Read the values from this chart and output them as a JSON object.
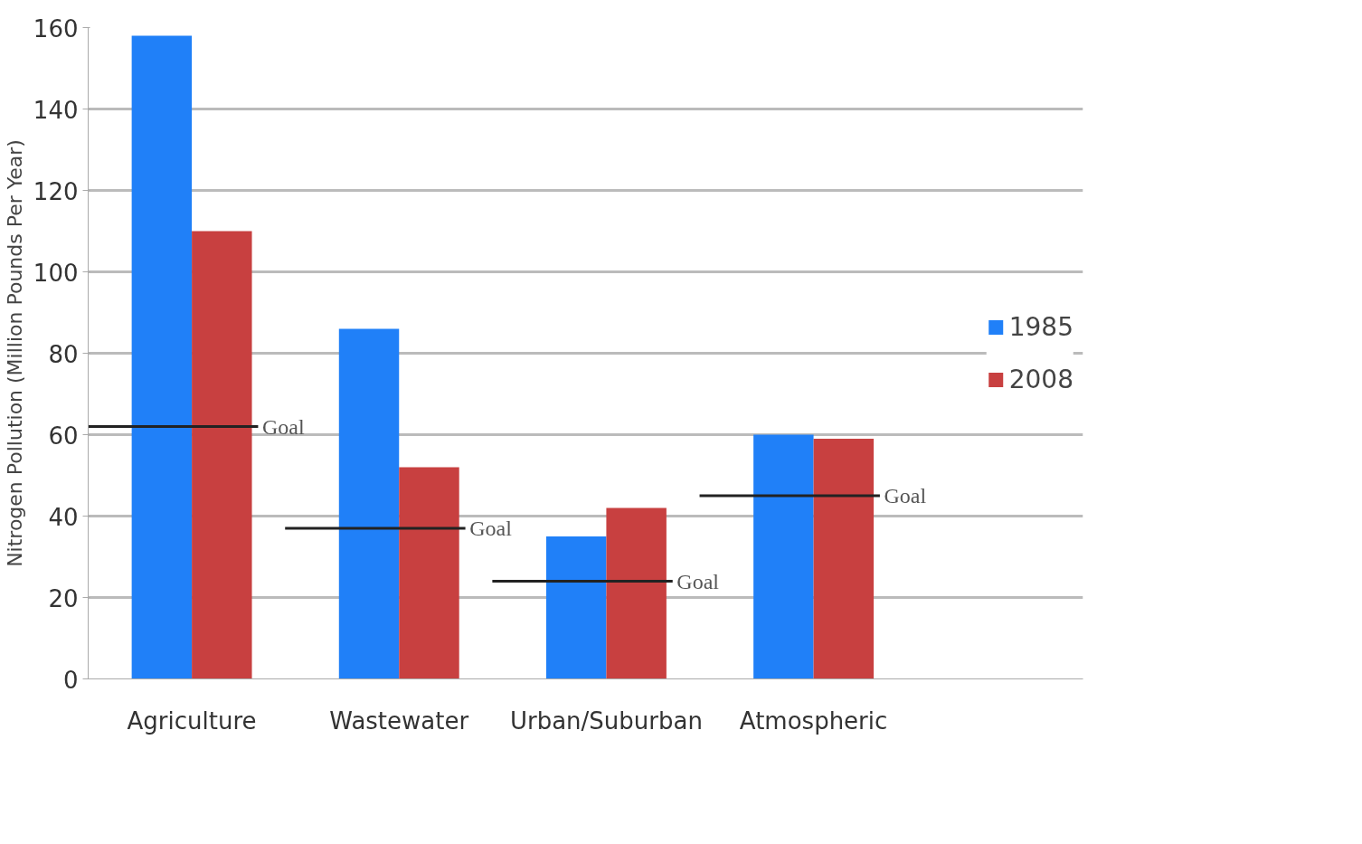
{
  "chart_data": {
    "type": "bar",
    "ylabel": "Nitrogen Pollution (Million Pounds Per Year)",
    "categories": [
      "Agriculture",
      "Wastewater",
      "Urban/Suburban",
      "Atmospheric"
    ],
    "series": [
      {
        "name": "1985",
        "color": "#2080f8",
        "values": [
          158,
          86,
          35,
          60
        ]
      },
      {
        "name": "2008",
        "color": "#c84040",
        "values": [
          110,
          52,
          42,
          59
        ]
      }
    ],
    "ref_lines": [
      {
        "axis": "y",
        "value": 62,
        "label": "Goal",
        "color": "#222222"
      },
      {
        "axis": "y",
        "value": 37,
        "label": "Goal",
        "color": "#222222"
      },
      {
        "axis": "y",
        "value": 24,
        "label": "Goal",
        "color": "#222222"
      },
      {
        "axis": "y",
        "value": 45,
        "label": "Goal",
        "color": "#222222"
      }
    ],
    "ylim": [
      0,
      160
    ],
    "yticks": [
      0,
      20,
      40,
      60,
      80,
      100,
      120,
      140,
      160
    ],
    "grid": "y",
    "legend": "right"
  }
}
